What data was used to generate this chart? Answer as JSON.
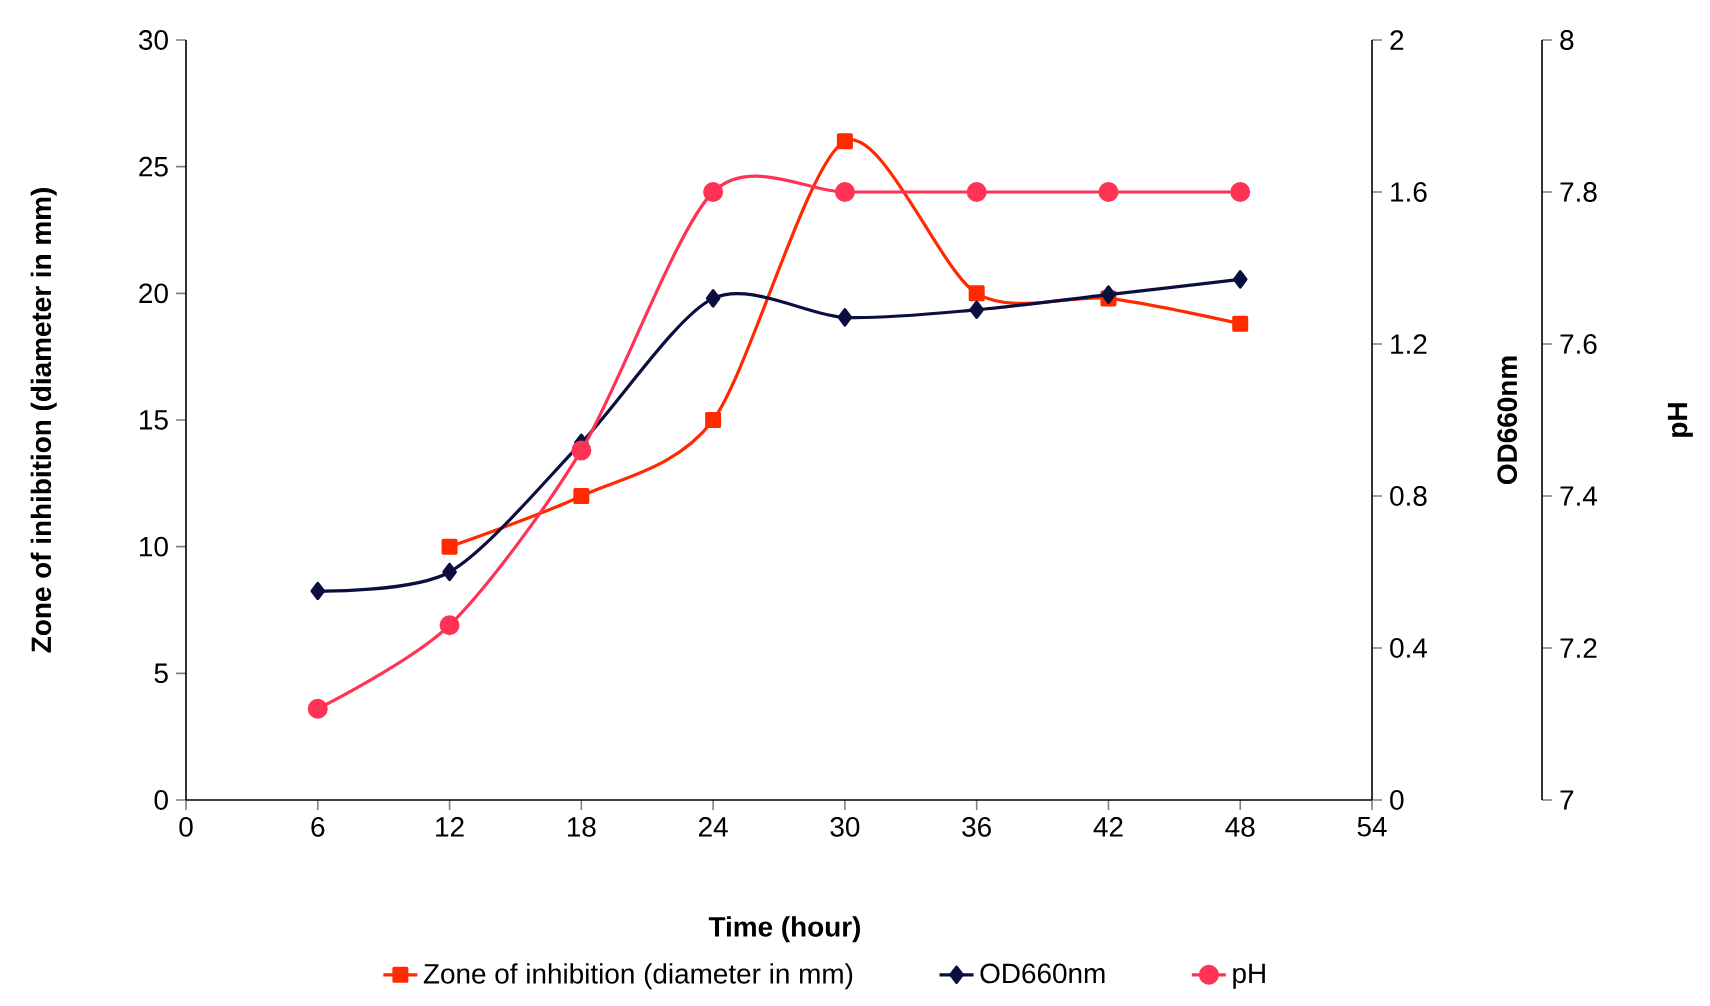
{
  "chart_data": {
    "type": "line",
    "xlabel": "Time (hour)",
    "ylabel": "Zone of inhibition (diameter in mm)",
    "y2label": "OD660nm",
    "y3label": "pH",
    "xlim": [
      0,
      54
    ],
    "xticks": [
      0,
      6,
      12,
      18,
      24,
      30,
      36,
      42,
      48,
      54
    ],
    "ylim": [
      0,
      30
    ],
    "yticks": [
      0,
      5,
      10,
      15,
      20,
      25,
      30
    ],
    "y2lim": [
      0,
      2
    ],
    "y2ticks": [
      0,
      0.4,
      0.8,
      1.2,
      1.6,
      2
    ],
    "y3lim": [
      7,
      8
    ],
    "y3ticks": [
      7,
      7.2,
      7.4,
      7.6,
      7.8,
      8
    ],
    "legend": "bottom",
    "grid": false,
    "series": [
      {
        "name": "Zone of inhibition  (diameter in mm)",
        "color": "#ff2a00",
        "marker": "square",
        "axis": "y",
        "x": [
          12,
          18,
          24,
          30,
          36,
          42,
          48
        ],
        "values": [
          10,
          12,
          15,
          26,
          20,
          19.8,
          18.8
        ]
      },
      {
        "name": "OD660nm",
        "color": "#0a0f40",
        "marker": "diamond",
        "axis": "y2",
        "x": [
          6,
          12,
          18,
          24,
          30,
          36,
          42,
          48
        ],
        "values": [
          0.55,
          0.6,
          0.94,
          1.32,
          1.27,
          1.29,
          1.33,
          1.37
        ]
      },
      {
        "name": "pH",
        "color": "#ff3355",
        "marker": "circle",
        "axis": "y3",
        "x": [
          6,
          12,
          18,
          24,
          30,
          36,
          42,
          48
        ],
        "values": [
          7.12,
          7.23,
          7.46,
          7.8,
          7.8,
          7.8,
          7.8,
          7.8
        ]
      }
    ]
  }
}
